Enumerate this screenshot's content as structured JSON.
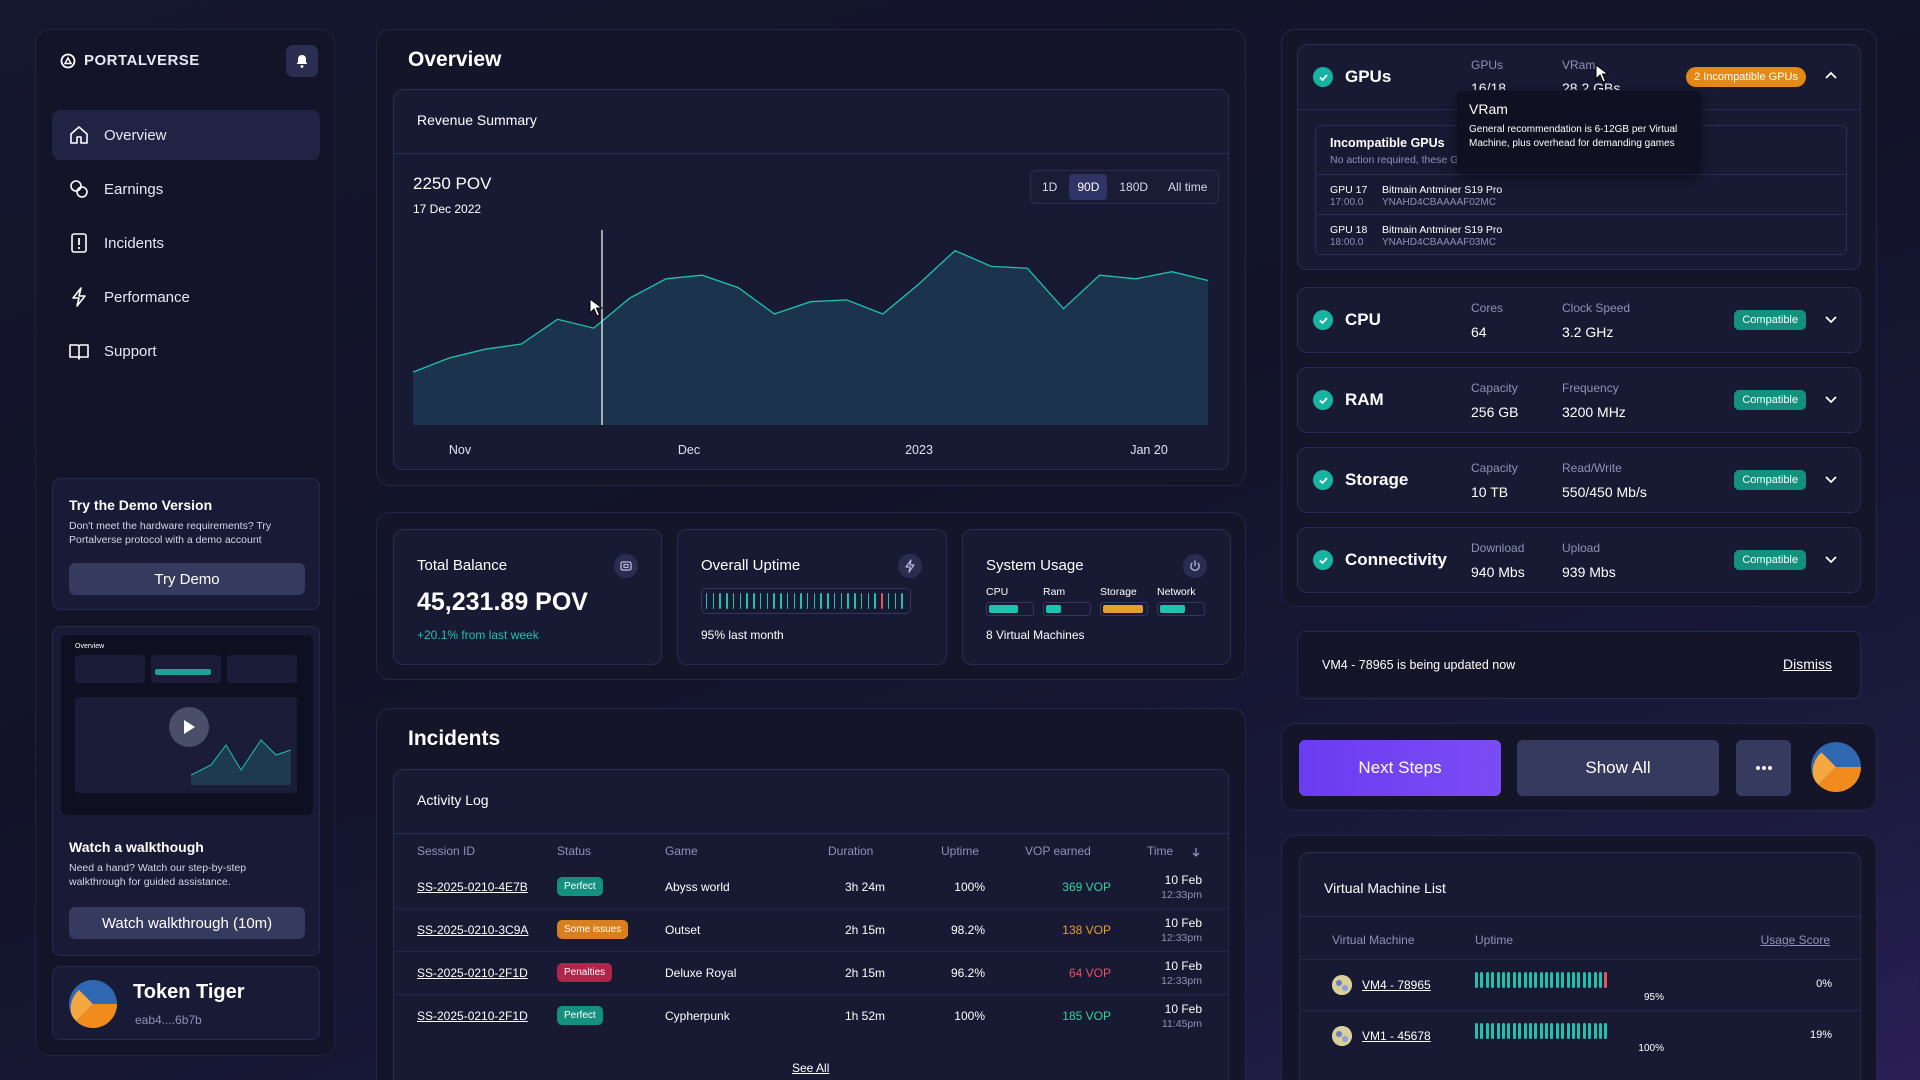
{
  "app": {
    "logo": "PORTALVERSE"
  },
  "sidebar": {
    "items": [
      {
        "label": "Overview",
        "icon": "home-icon",
        "active": true
      },
      {
        "label": "Earnings",
        "icon": "coins-icon"
      },
      {
        "label": "Incidents",
        "icon": "alert-icon"
      },
      {
        "label": "Performance",
        "icon": "bolt-icon"
      },
      {
        "label": "Support",
        "icon": "book-icon"
      }
    ],
    "demo": {
      "title": "Try the Demo Version",
      "text": "Don't meet the hardware requirements? Try Portalverse protocol with a demo account",
      "button": "Try Demo"
    },
    "walkthrough": {
      "title": "Watch a walkthough",
      "text": "Need a hand? Watch our step-by-step walkthrough for guided assistance.",
      "button": "Watch walkthrough (10m)"
    },
    "user": {
      "name": "Token Tiger",
      "address": "eab4....6b7b"
    }
  },
  "overview": {
    "title": "Overview",
    "revenue": {
      "title": "Revenue Summary",
      "value": "2250 POV",
      "date": "17 Dec 2022",
      "ranges": [
        "1D",
        "90D",
        "180D",
        "All time"
      ],
      "selected_range": "90D"
    }
  },
  "chart_data": {
    "type": "area",
    "title": "Revenue Summary",
    "x_tick_labels": [
      "Nov",
      "Dec",
      "2023",
      "Jan 20"
    ],
    "values": [
      2000,
      2080,
      2130,
      2160,
      2300,
      2250,
      2420,
      2530,
      2550,
      2480,
      2330,
      2400,
      2410,
      2330,
      2500,
      2690,
      2600,
      2590,
      2360,
      2550,
      2530,
      2570,
      2520
    ]
  },
  "stats": {
    "balance": {
      "title": "Total Balance",
      "value": "45,231.89 POV",
      "change": "+20.1% from last week"
    },
    "uptime": {
      "title": "Overall Uptime",
      "sub": "95% last month"
    },
    "usage": {
      "title": "System Usage",
      "labels": [
        "CPU",
        "Ram",
        "Storage",
        "Network"
      ],
      "levels": [
        0.7,
        0.35,
        0.95,
        0.6
      ],
      "sub": "8 Virtual Machines"
    }
  },
  "incidents": {
    "title": "Incidents",
    "log_title": "Activity Log",
    "columns": [
      "Session ID",
      "Status",
      "Game",
      "Duration",
      "Uptime",
      "VOP earned",
      "Time"
    ],
    "rows": [
      {
        "id": "SS-2025-0210-4E7B",
        "status": "Perfect",
        "game": "Abyss world",
        "duration": "3h 24m",
        "uptime": "100%",
        "vop": "369 VOP",
        "date": "10 Feb",
        "time": "12:33pm"
      },
      {
        "id": "SS-2025-0210-3C9A",
        "status": "Some issues",
        "game": "Outset",
        "duration": "2h 15m",
        "uptime": "98.2%",
        "vop": "138 VOP",
        "date": "10 Feb",
        "time": "12:33pm"
      },
      {
        "id": "SS-2025-0210-2F1D",
        "status": "Penalties",
        "game": "Deluxe Royal",
        "duration": "2h 15m",
        "uptime": "96.2%",
        "vop": "64 VOP",
        "date": "10 Feb",
        "time": "12:33pm"
      },
      {
        "id": "SS-2025-0210-2F1D",
        "status": "Perfect",
        "game": "Cypherpunk",
        "duration": "1h 52m",
        "uptime": "100%",
        "vop": "185 VOP",
        "date": "10 Feb",
        "time": "11:45pm"
      }
    ],
    "see_all": "See All"
  },
  "hardware": {
    "gpus": {
      "title": "GPUs",
      "l1": "GPUs",
      "v1": "16/18",
      "l2": "VRam",
      "v2": "28.2 GBs",
      "badge": "2 Incompatible GPUs",
      "incompat_title": "Incompatible GPUs",
      "incompat_text": "No action required, these GPUs",
      "items": [
        {
          "name": "GPU 17",
          "id": "17:00.0",
          "model": "Bitmain Antminer S19 Pro",
          "serial": "YNAHD4CBAAAAF02MC"
        },
        {
          "name": "GPU 18",
          "id": "18:00.0",
          "model": "Bitmain Antminer S19 Pro",
          "serial": "YNAHD4CBAAAAF03MC"
        }
      ],
      "tooltip_title": "VRam",
      "tooltip_text": "General recommendation is 6-12GB per Virtual Machine, plus overhead for demanding games"
    },
    "cpu": {
      "title": "CPU",
      "l1": "Cores",
      "v1": "64",
      "l2": "Clock Speed",
      "v2": "3.2 GHz",
      "badge": "Compatible"
    },
    "ram": {
      "title": "RAM",
      "l1": "Capacity",
      "v1": "256 GB",
      "l2": "Frequency",
      "v2": "3200 MHz",
      "badge": "Compatible"
    },
    "storage": {
      "title": "Storage",
      "l1": "Capacity",
      "v1": "10 TB",
      "l2": "Read/Write",
      "v2": "550/450 Mb/s",
      "badge": "Compatible"
    },
    "connectivity": {
      "title": "Connectivity",
      "l1": "Download",
      "v1": "940 Mbs",
      "l2": "Upload",
      "v2": "939 Mbs",
      "badge": "Compatible"
    }
  },
  "notice": {
    "text": "VM4 - 78965 is being updated now",
    "dismiss": "Dismiss"
  },
  "actions": {
    "next": "Next Steps",
    "show_all": "Show All"
  },
  "vm_list": {
    "title": "Virtual Machine List",
    "columns": [
      "Virtual Machine",
      "Uptime",
      "Usage Score"
    ],
    "rows": [
      {
        "name": "VM4 - 78965",
        "uptime": "95%",
        "score": "0%"
      },
      {
        "name": "VM1 - 45678",
        "uptime": "100%",
        "score": "19%"
      }
    ]
  },
  "colors": {
    "accent": "#1fc2ad",
    "orange": "#e3a02a",
    "red": "#e0555f",
    "purple": "#6a3cf0"
  }
}
